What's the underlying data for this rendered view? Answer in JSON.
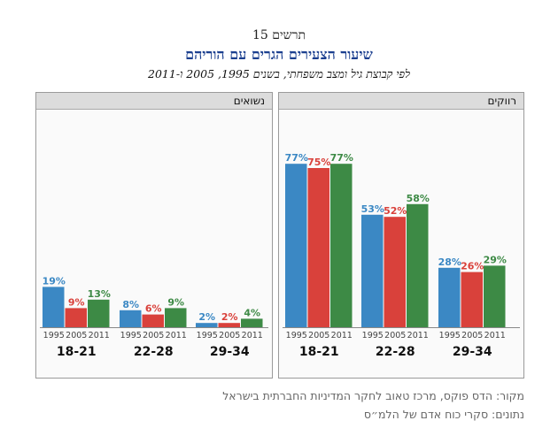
{
  "header": {
    "figure_label": "תרשים 15",
    "title": "שיעור הצעירים הגרים עם הוריהם",
    "subtitle": "לפי קבוצת גיל ומצב משפחתי, בשנים 1995, 2005 ו-2011"
  },
  "colors": {
    "1995": "#3b88c4",
    "2005": "#d9413b",
    "2011": "#3d8a45"
  },
  "chart_data": [
    {
      "type": "bar",
      "panel": "right",
      "title": "רווקים",
      "categories": [
        "18-21",
        "22-28",
        "29-34"
      ],
      "years": [
        "1995",
        "2005",
        "2011"
      ],
      "series": [
        {
          "name": "1995",
          "values": [
            77,
            53,
            28
          ],
          "labels": [
            "77%",
            "53%",
            "28%"
          ]
        },
        {
          "name": "2005",
          "values": [
            75,
            52,
            26
          ],
          "labels": [
            "75%",
            "52%",
            "26%"
          ]
        },
        {
          "name": "2011",
          "values": [
            77,
            58,
            29
          ],
          "labels": [
            "77%",
            "58%",
            "29%"
          ]
        }
      ],
      "ylim": [
        0,
        100
      ]
    },
    {
      "type": "bar",
      "panel": "left",
      "title": "נשואים",
      "categories": [
        "18-21",
        "22-28",
        "29-34"
      ],
      "years": [
        "1995",
        "2005",
        "2011"
      ],
      "series": [
        {
          "name": "1995",
          "values": [
            19,
            8,
            2
          ],
          "labels": [
            "19%",
            "8%",
            "2%"
          ]
        },
        {
          "name": "2005",
          "values": [
            9,
            6,
            2
          ],
          "labels": [
            "9%",
            "6%",
            "2%"
          ]
        },
        {
          "name": "2011",
          "values": [
            13,
            9,
            4
          ],
          "labels": [
            "13%",
            "9%",
            "4%"
          ]
        }
      ],
      "ylim": [
        0,
        100
      ]
    }
  ],
  "source": {
    "line1": "מקור: הדס פוקס, מרכז טאוב לחקר המדיניות החברתית בישראל",
    "line2": "נתונים: סקרי כוח אדם של הלמ״ס"
  }
}
